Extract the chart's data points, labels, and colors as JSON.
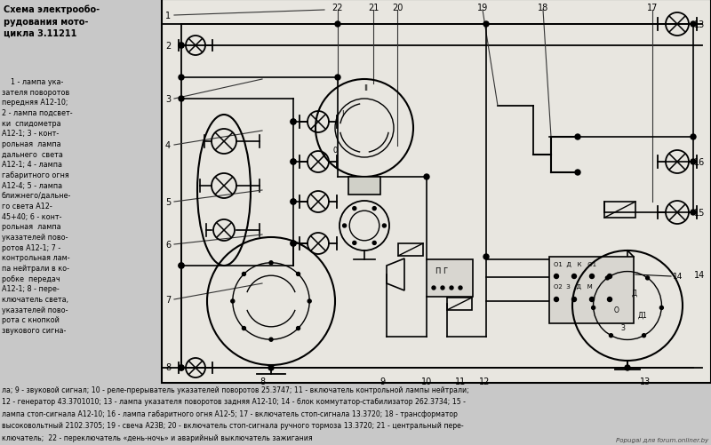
{
  "bg_color": "#c8c8c8",
  "diagram_bg": "#e8e6e0",
  "title_bold": "Схема электрообо-\nрудования мото-\nцикла 3.11211",
  "left_legend": "    1 - лампа ука-\nзателя поворотов\nпередняя А12-10;\n2 - лампа подсвет-\nки  спидометра\nА12-1; 3 - конт-\nрольная  лампа\nдальнего  света\nА12-1; 4 - лампа\nгабаритного огня\nА12-4; 5 - лампа\nближнего/дальне-\nго света А12-\n45+40; 6 - конт-\nрольная  лампа\nуказателей пово-\nротов А12-1; 7 -\nконтрольная лам-\nпа нейтрали в ко-\nробке  передач\nА12-1; 8 - пере-\nключатель света,\nуказателей пово-\nрота с кнопкой\nзвукового сигна-",
  "bottom_text_line1": "ла; 9 - звуковой сигнал; 10 - реле-прерыватель указателей поворотов 25.3747; 11 - включатель контрольной лампы нейтрали;",
  "bottom_text_line2": "12 - генератор 43.3701010; 13 - лампа указателя поворотов задняя А12-10; 14 - блок коммутатор-стабилизатор 262.3734; 15 -",
  "bottom_text_line3": "лампа стоп-сигнала А12-10; 16 - лампа габаритного огня А12-5; 17 - включатель стоп-сигнала 13.3720; 18 - трансформатор",
  "bottom_text_line4": "высоковольтный 2102.3705; 19 - свеча А23В; 20 - включатель стоп-сигнала ручного тормоза 13.3720; 21 - центральный пере-",
  "bottom_text_line5": "ключатель;  22 - переключатель «день-ночь» и аварийный выключатель зажигания",
  "watermark": "Popugai для forum.onliner.by"
}
